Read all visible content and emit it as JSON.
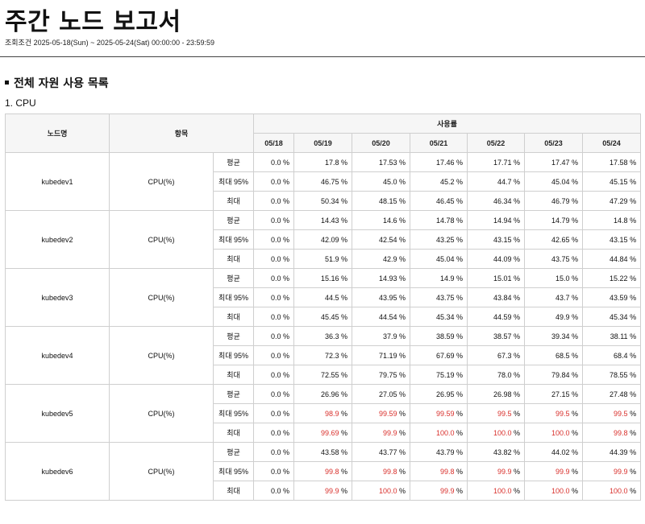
{
  "report": {
    "title": "주간 노드 보고서",
    "period": "조회조건 2025-05-18(Sun) ~ 2025-05-24(Sat) 00:00:00 - 23:59:59"
  },
  "section": {
    "title": "전체 자원 사용 목록",
    "subtitle": "1. CPU"
  },
  "table": {
    "headers": {
      "node": "노드명",
      "item": "항목",
      "usage": "사용률"
    },
    "dates": [
      "05/18",
      "05/19",
      "05/20",
      "05/21",
      "05/22",
      "05/23",
      "05/24"
    ],
    "unit": " %",
    "alert_color": "#d9302c",
    "stat_labels": [
      "평균",
      "최대 95%",
      "최대"
    ],
    "rows": [
      {
        "node": "kubedev1",
        "item": "CPU(%)",
        "stats": [
          {
            "values": [
              "0.0",
              "17.8",
              "17.53",
              "17.46",
              "17.71",
              "17.47",
              "17.58"
            ],
            "alerts": [
              false,
              false,
              false,
              false,
              false,
              false,
              false
            ]
          },
          {
            "values": [
              "0.0",
              "46.75",
              "45.0",
              "45.2",
              "44.7",
              "45.04",
              "45.15"
            ],
            "alerts": [
              false,
              false,
              false,
              false,
              false,
              false,
              false
            ]
          },
          {
            "values": [
              "0.0",
              "50.34",
              "48.15",
              "46.45",
              "46.34",
              "46.79",
              "47.29"
            ],
            "alerts": [
              false,
              false,
              false,
              false,
              false,
              false,
              false
            ]
          }
        ]
      },
      {
        "node": "kubedev2",
        "item": "CPU(%)",
        "stats": [
          {
            "values": [
              "0.0",
              "14.43",
              "14.6",
              "14.78",
              "14.94",
              "14.79",
              "14.8"
            ],
            "alerts": [
              false,
              false,
              false,
              false,
              false,
              false,
              false
            ]
          },
          {
            "values": [
              "0.0",
              "42.09",
              "42.54",
              "43.25",
              "43.15",
              "42.65",
              "43.15"
            ],
            "alerts": [
              false,
              false,
              false,
              false,
              false,
              false,
              false
            ]
          },
          {
            "values": [
              "0.0",
              "51.9",
              "42.9",
              "45.04",
              "44.09",
              "43.75",
              "44.84"
            ],
            "alerts": [
              false,
              false,
              false,
              false,
              false,
              false,
              false
            ]
          }
        ]
      },
      {
        "node": "kubedev3",
        "item": "CPU(%)",
        "stats": [
          {
            "values": [
              "0.0",
              "15.16",
              "14.93",
              "14.9",
              "15.01",
              "15.0",
              "15.22"
            ],
            "alerts": [
              false,
              false,
              false,
              false,
              false,
              false,
              false
            ]
          },
          {
            "values": [
              "0.0",
              "44.5",
              "43.95",
              "43.75",
              "43.84",
              "43.7",
              "43.59"
            ],
            "alerts": [
              false,
              false,
              false,
              false,
              false,
              false,
              false
            ]
          },
          {
            "values": [
              "0.0",
              "45.45",
              "44.54",
              "45.34",
              "44.59",
              "49.9",
              "45.34"
            ],
            "alerts": [
              false,
              false,
              false,
              false,
              false,
              false,
              false
            ]
          }
        ]
      },
      {
        "node": "kubedev4",
        "item": "CPU(%)",
        "stats": [
          {
            "values": [
              "0.0",
              "36.3",
              "37.9",
              "38.59",
              "38.57",
              "39.34",
              "38.11"
            ],
            "alerts": [
              false,
              false,
              false,
              false,
              false,
              false,
              false
            ]
          },
          {
            "values": [
              "0.0",
              "72.3",
              "71.19",
              "67.69",
              "67.3",
              "68.5",
              "68.4"
            ],
            "alerts": [
              false,
              false,
              false,
              false,
              false,
              false,
              false
            ]
          },
          {
            "values": [
              "0.0",
              "72.55",
              "79.75",
              "75.19",
              "78.0",
              "79.84",
              "78.55"
            ],
            "alerts": [
              false,
              false,
              false,
              false,
              false,
              false,
              false
            ]
          }
        ]
      },
      {
        "node": "kubedev5",
        "item": "CPU(%)",
        "stats": [
          {
            "values": [
              "0.0",
              "26.96",
              "27.05",
              "26.95",
              "26.98",
              "27.15",
              "27.48"
            ],
            "alerts": [
              false,
              false,
              false,
              false,
              false,
              false,
              false
            ]
          },
          {
            "values": [
              "0.0",
              "98.9",
              "99.59",
              "99.59",
              "99.5",
              "99.5",
              "99.5"
            ],
            "alerts": [
              false,
              true,
              true,
              true,
              true,
              true,
              true
            ]
          },
          {
            "values": [
              "0.0",
              "99.69",
              "99.9",
              "100.0",
              "100.0",
              "100.0",
              "99.8"
            ],
            "alerts": [
              false,
              true,
              true,
              true,
              true,
              true,
              true
            ]
          }
        ]
      },
      {
        "node": "kubedev6",
        "item": "CPU(%)",
        "stats": [
          {
            "values": [
              "0.0",
              "43.58",
              "43.77",
              "43.79",
              "43.82",
              "44.02",
              "44.39"
            ],
            "alerts": [
              false,
              false,
              false,
              false,
              false,
              false,
              false
            ]
          },
          {
            "values": [
              "0.0",
              "99.8",
              "99.8",
              "99.8",
              "99.9",
              "99.9",
              "99.9"
            ],
            "alerts": [
              false,
              true,
              true,
              true,
              true,
              true,
              true
            ]
          },
          {
            "values": [
              "0.0",
              "99.9",
              "100.0",
              "99.9",
              "100.0",
              "100.0",
              "100.0"
            ],
            "alerts": [
              false,
              true,
              true,
              true,
              true,
              true,
              true
            ]
          }
        ]
      }
    ]
  }
}
